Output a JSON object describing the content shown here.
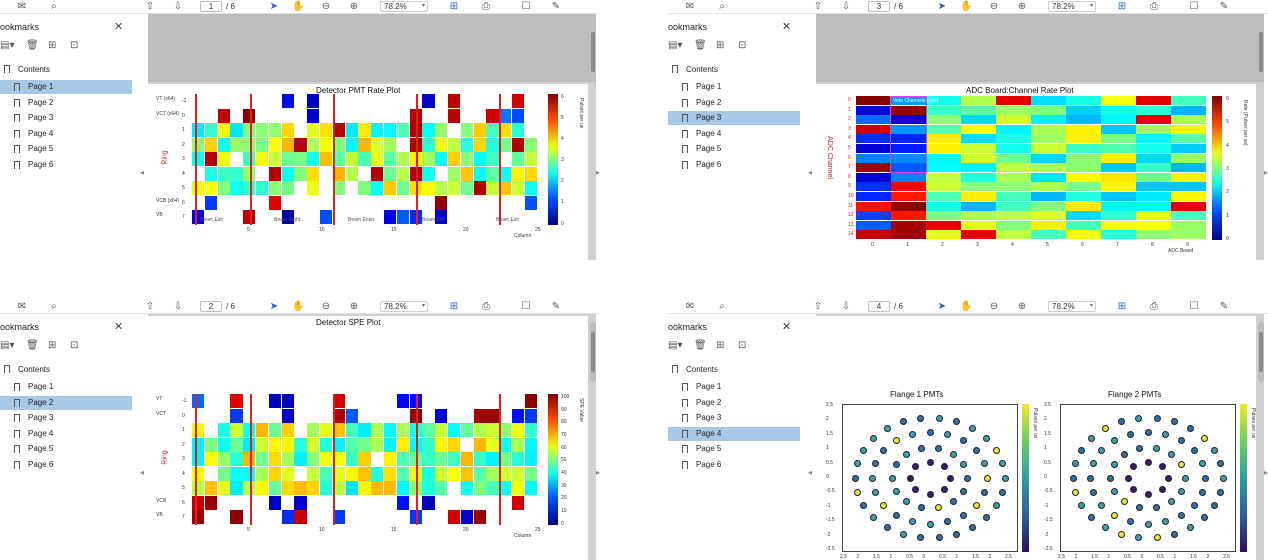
{
  "app": {
    "sidebar_title": "ookmarks",
    "close_glyph": "✕",
    "contents_label": "Contents",
    "pages": [
      "Page 1",
      "Page 2",
      "Page 3",
      "Page 4",
      "Page 5",
      "Page 6"
    ],
    "page_total": "/ 6",
    "zoom": "78.2%"
  },
  "windows": [
    {
      "id": "w1",
      "current_page": "1",
      "selected_index": 0,
      "title": "Detector PMT Rate Plot"
    },
    {
      "id": "w2",
      "current_page": "3",
      "selected_index": 2,
      "title": "ADC Board:Channel Rate Plot"
    },
    {
      "id": "w3",
      "current_page": "2",
      "selected_index": 1,
      "title": "Detector SPE Plot"
    },
    {
      "id": "w4",
      "current_page": "4",
      "selected_index": 3,
      "title": "Flange 1 PMTs",
      "title2": "Flange 2 PMTs"
    }
  ],
  "icons": {
    "mail": "✉",
    "search": "⌕",
    "up": "⇧",
    "down": "⇩",
    "pointer": "➤",
    "hand": "✋",
    "minus": "⊖",
    "plus": "⊕",
    "fit": "⊞",
    "print": "⎙",
    "comment": "☐",
    "pen": "✎",
    "trash": "🗑",
    "add_bm": "⊞",
    "find_bm": "⊡"
  },
  "pmt_plot": {
    "row_labels_left": [
      "VT (x64)",
      "VCT (x64)",
      "",
      "",
      "",
      "",
      "",
      "VCB (x64)",
      "VB"
    ],
    "row_numbers": [
      "-1",
      "0",
      "1",
      "2",
      "3",
      "4",
      "5",
      "6",
      "7"
    ],
    "ylabel": "Ring",
    "xticks": [
      "5",
      "10",
      "15",
      "20",
      "25"
    ],
    "xlabel": "Column",
    "region_labels": [
      "Beam Exit",
      "Beam Right",
      "Beam Enter",
      "Beam Left",
      "Beam Exit"
    ],
    "colorbar_ticks": [
      "0",
      "1",
      "2",
      "3",
      "4",
      "5",
      "6"
    ],
    "colorbar_title": "Pulses per us"
  },
  "spe_plot": {
    "row_labels_left": [
      "VT",
      "VCT",
      "",
      "",
      "",
      "",
      "",
      "VCB",
      "VB"
    ],
    "row_numbers": [
      "-1",
      "0",
      "1",
      "2",
      "3",
      "4",
      "5",
      "6",
      "7"
    ],
    "ylabel": "Ring",
    "xticks": [
      "5",
      "10",
      "15",
      "20",
      "25"
    ],
    "xlabel": "Column",
    "colorbar_ticks": [
      "0",
      "10",
      "20",
      "30",
      "40",
      "50",
      "60",
      "70",
      "80",
      "90",
      "100"
    ],
    "colorbar_title": "SPE Value"
  },
  "adc_plot": {
    "row_numbers": [
      "0",
      "1",
      "2",
      "3",
      "4",
      "5",
      "6",
      "7",
      "8",
      "9",
      "10",
      "11",
      "12",
      "13",
      "14"
    ],
    "xticks": [
      "0",
      "1",
      "2",
      "3",
      "4",
      "5",
      "6",
      "7",
      "8",
      "9"
    ],
    "xlabel": "ADC Board",
    "ylabel": "ADC Channel",
    "inset_label": "Veto Channels (x64)",
    "colorbar_ticks": [
      "0",
      "1",
      "2",
      "3",
      "4",
      "5",
      "6"
    ],
    "colorbar_title": "Rate (Pulses per us)"
  },
  "flange_plot": {
    "axis_ticks": [
      "2.5",
      "2",
      "1.5",
      "1",
      "0.5",
      "0",
      "0.5",
      "1",
      "1.5",
      "2",
      "2.5"
    ],
    "yticks": [
      "2.5",
      "2",
      "1.5",
      "1",
      "0.5",
      "0",
      "-0.5",
      "-1",
      "-1.5",
      "-2",
      "-2.5"
    ],
    "colorbar_title": "Pulses per us"
  }
}
